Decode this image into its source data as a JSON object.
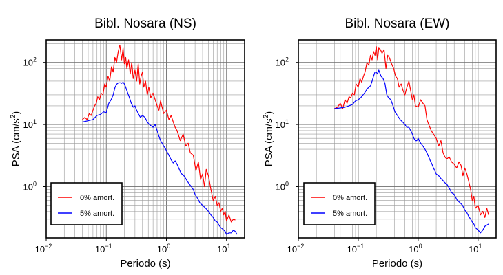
{
  "chart_data": [
    {
      "type": "line",
      "title": "Bibl. Nosara (NS)",
      "xlabel": "Periodo (s)",
      "ylabel": "PSA (cm/s",
      "ylabel_sup": "2",
      "ylabel_end": ")",
      "xscale": "log",
      "yscale": "log",
      "xlim": [
        0.01,
        20
      ],
      "ylim": [
        0.15,
        230
      ],
      "grid": true,
      "legend_position": "bottom-left",
      "x_ticks": [
        {
          "base": "10",
          "exp": "−2"
        },
        {
          "base": "10",
          "exp": "−1"
        },
        {
          "base": "10",
          "exp": "0"
        },
        {
          "base": "10",
          "exp": "1"
        }
      ],
      "y_ticks": [
        {
          "base": "10",
          "exp": "0"
        },
        {
          "base": "10",
          "exp": "1"
        },
        {
          "base": "10",
          "exp": "2"
        }
      ],
      "series": [
        {
          "name": "0% amort.",
          "color": "#ff0000",
          "x": [
            0.04,
            0.044,
            0.048,
            0.052,
            0.056,
            0.06,
            0.064,
            0.068,
            0.072,
            0.077,
            0.082,
            0.088,
            0.094,
            0.1,
            0.107,
            0.114,
            0.122,
            0.13,
            0.139,
            0.148,
            0.158,
            0.168,
            0.18,
            0.19,
            0.2,
            0.21,
            0.22,
            0.235,
            0.25,
            0.265,
            0.28,
            0.3,
            0.32,
            0.34,
            0.36,
            0.38,
            0.4,
            0.42,
            0.45,
            0.48,
            0.51,
            0.55,
            0.6,
            0.65,
            0.7,
            0.75,
            0.8,
            0.9,
            1.0,
            1.1,
            1.2,
            1.3,
            1.4,
            1.5,
            1.7,
            1.9,
            2.1,
            2.3,
            2.5,
            2.8,
            3.1,
            3.4,
            3.7,
            4.0,
            4.3,
            4.6,
            5.0,
            5.5,
            6.0,
            6.5,
            7.0,
            7.5,
            8.0,
            8.5,
            9.0,
            9.5,
            10.0,
            11.0,
            12.0,
            13.0,
            14.0
          ],
          "y": [
            12,
            13,
            12,
            15,
            14,
            17,
            20,
            22,
            28,
            25,
            32,
            30,
            45,
            40,
            60,
            50,
            85,
            70,
            120,
            100,
            150,
            190,
            110,
            170,
            95,
            120,
            80,
            110,
            65,
            100,
            55,
            75,
            50,
            95,
            45,
            60,
            70,
            40,
            50,
            30,
            40,
            27,
            32,
            25,
            20,
            17,
            24,
            15,
            17,
            12,
            14,
            11,
            9,
            8,
            5.5,
            7,
            4.5,
            5,
            3.5,
            3.2,
            1.8,
            2.5,
            1.3,
            1.6,
            1.0,
            1.9,
            1.5,
            0.9,
            0.6,
            0.7,
            0.5,
            0.55,
            0.4,
            0.45,
            0.35,
            0.4,
            0.28,
            0.35,
            0.27,
            0.3,
            0.29
          ]
        },
        {
          "name": "5% amort.",
          "color": "#0000ff",
          "x": [
            0.04,
            0.05,
            0.06,
            0.07,
            0.08,
            0.09,
            0.1,
            0.11,
            0.12,
            0.13,
            0.14,
            0.15,
            0.16,
            0.17,
            0.18,
            0.19,
            0.2,
            0.21,
            0.22,
            0.24,
            0.26,
            0.28,
            0.3,
            0.32,
            0.34,
            0.37,
            0.4,
            0.44,
            0.48,
            0.52,
            0.56,
            0.6,
            0.65,
            0.7,
            0.75,
            0.8,
            0.85,
            0.9,
            0.95,
            1.0,
            1.1,
            1.2,
            1.3,
            1.4,
            1.5,
            1.6,
            1.7,
            1.8,
            1.9,
            2.0,
            2.2,
            2.4,
            2.6,
            2.8,
            3.0,
            3.3,
            3.6,
            4.0,
            4.5,
            5.0,
            5.5,
            6.0,
            6.5,
            7.0,
            7.5,
            8.0,
            8.5,
            9.0,
            9.5,
            10.0,
            11.0,
            12.0,
            13.0,
            14.0,
            15.0
          ],
          "y": [
            11,
            11.5,
            12,
            14,
            14.5,
            16,
            15.5,
            22,
            25,
            30,
            40,
            45,
            47,
            47,
            46,
            48,
            45,
            40,
            35,
            28,
            22,
            19,
            20,
            17,
            15,
            13,
            14,
            13,
            11,
            10,
            9.5,
            9,
            10,
            8,
            6.5,
            5.5,
            5,
            4.5,
            4.2,
            3.8,
            3.2,
            2.7,
            2.4,
            2.6,
            2.3,
            2.0,
            1.75,
            1.6,
            1.55,
            1.45,
            1.25,
            1.1,
            1.0,
            0.9,
            0.75,
            0.65,
            0.55,
            0.5,
            0.45,
            0.4,
            0.35,
            0.32,
            0.28,
            0.27,
            0.24,
            0.22,
            0.21,
            0.2,
            0.19,
            0.17,
            0.18,
            0.18,
            0.2,
            0.19,
            0.17
          ]
        }
      ]
    },
    {
      "type": "line",
      "title": "Bibl. Nosara (EW)",
      "xlabel": "Periodo (s)",
      "ylabel": "PSA (cm/s",
      "ylabel_sup": "2",
      "ylabel_end": ")",
      "xscale": "log",
      "yscale": "log",
      "xlim": [
        0.01,
        20
      ],
      "ylim": [
        0.15,
        230
      ],
      "grid": true,
      "legend_position": "bottom-left",
      "x_ticks": [
        {
          "base": "10",
          "exp": "−2"
        },
        {
          "base": "10",
          "exp": "−1"
        },
        {
          "base": "10",
          "exp": "0"
        },
        {
          "base": "10",
          "exp": "1"
        }
      ],
      "y_ticks": [
        {
          "base": "10",
          "exp": "0"
        },
        {
          "base": "10",
          "exp": "1"
        },
        {
          "base": "10",
          "exp": "2"
        }
      ],
      "series": [
        {
          "name": "0% amort.",
          "color": "#ff0000",
          "x": [
            0.04,
            0.045,
            0.05,
            0.055,
            0.06,
            0.065,
            0.07,
            0.075,
            0.08,
            0.086,
            0.092,
            0.1,
            0.107,
            0.114,
            0.122,
            0.13,
            0.14,
            0.15,
            0.16,
            0.17,
            0.18,
            0.19,
            0.2,
            0.21,
            0.22,
            0.235,
            0.25,
            0.27,
            0.29,
            0.31,
            0.33,
            0.36,
            0.39,
            0.42,
            0.45,
            0.48,
            0.52,
            0.56,
            0.6,
            0.65,
            0.7,
            0.75,
            0.8,
            0.85,
            0.9,
            1.0,
            1.1,
            1.2,
            1.3,
            1.4,
            1.5,
            1.65,
            1.8,
            2.0,
            2.2,
            2.4,
            2.6,
            2.8,
            3.0,
            3.3,
            3.6,
            4.0,
            4.4,
            4.8,
            5.2,
            5.6,
            6.0,
            6.5,
            7.0,
            7.5,
            8.0,
            8.5,
            9.0,
            10.0,
            11.0,
            12.0,
            13.0,
            14.0,
            15.0
          ],
          "y": [
            18,
            19,
            22,
            18,
            25,
            22,
            28,
            27,
            32,
            30,
            45,
            40,
            55,
            48,
            60,
            70,
            100,
            90,
            130,
            110,
            150,
            130,
            180,
            110,
            170,
            160,
            140,
            160,
            80,
            130,
            120,
            95,
            80,
            60,
            55,
            40,
            45,
            35,
            30,
            40,
            50,
            35,
            25,
            30,
            20,
            19,
            25,
            22,
            20,
            12,
            10,
            8,
            7,
            6,
            4.5,
            5.5,
            3.5,
            3.0,
            2.8,
            3.0,
            2.5,
            2.3,
            2.0,
            2.5,
            2.2,
            1.5,
            2.0,
            1.6,
            1.2,
            0.9,
            0.6,
            0.7,
            0.45,
            0.5,
            0.35,
            0.4,
            0.32,
            0.45,
            0.35
          ]
        },
        {
          "name": "5% amort.",
          "color": "#0000ff",
          "x": [
            0.04,
            0.05,
            0.06,
            0.07,
            0.08,
            0.09,
            0.1,
            0.11,
            0.12,
            0.13,
            0.14,
            0.15,
            0.16,
            0.17,
            0.18,
            0.19,
            0.2,
            0.21,
            0.22,
            0.24,
            0.26,
            0.28,
            0.3,
            0.32,
            0.35,
            0.38,
            0.41,
            0.45,
            0.5,
            0.55,
            0.6,
            0.65,
            0.7,
            0.75,
            0.8,
            0.85,
            0.9,
            0.95,
            1.0,
            1.1,
            1.2,
            1.3,
            1.4,
            1.5,
            1.6,
            1.7,
            1.8,
            1.9,
            2.0,
            2.2,
            2.4,
            2.6,
            2.8,
            3.0,
            3.3,
            3.6,
            4.0,
            4.5,
            5.0,
            5.5,
            6.0,
            6.5,
            7.0,
            7.5,
            8.0,
            8.5,
            9.0,
            10.0,
            11.0,
            12.0,
            13.0,
            14.0,
            15.0
          ],
          "y": [
            18,
            18.5,
            19,
            20,
            21,
            24,
            25,
            27,
            30,
            33,
            37,
            40,
            42,
            50,
            60,
            70,
            70,
            65,
            75,
            60,
            55,
            45,
            30,
            27,
            25,
            20,
            16,
            14,
            12,
            11,
            10,
            9,
            9,
            8,
            7,
            6,
            5.5,
            5.5,
            6,
            5,
            4.5,
            4.0,
            3.5,
            3.0,
            2.6,
            2.3,
            2.0,
            1.8,
            1.6,
            1.5,
            1.35,
            1.25,
            1.15,
            1.1,
            0.95,
            0.8,
            0.75,
            0.6,
            0.55,
            0.5,
            0.42,
            0.38,
            0.33,
            0.3,
            0.27,
            0.25,
            0.22,
            0.2,
            0.18,
            0.2,
            0.23,
            0.24,
            0.25
          ]
        }
      ]
    }
  ]
}
